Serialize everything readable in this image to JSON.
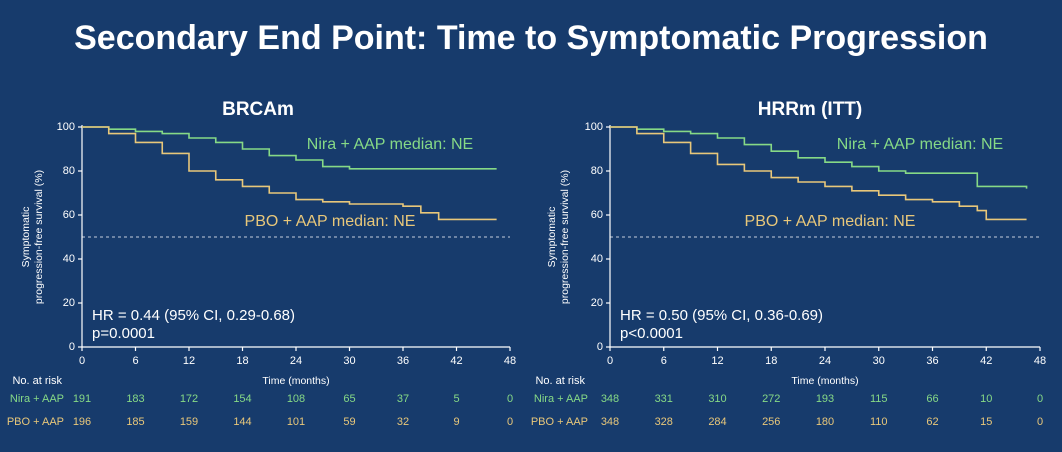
{
  "title": "Secondary End Point: Time to Symptomatic Progression",
  "chart_data": [
    {
      "type": "line",
      "step": true,
      "title": "BRCAm",
      "ylabel": [
        "Symptomatic",
        "progression-free survival (%)"
      ],
      "xlabel": "Time (months)",
      "xlim": [
        0,
        48
      ],
      "xticks": [
        0,
        6,
        12,
        18,
        24,
        30,
        36,
        42,
        48
      ],
      "ylim": [
        0,
        100
      ],
      "yticks": [
        0,
        20,
        40,
        60,
        80,
        100
      ],
      "reference_line": 50,
      "annotations": [
        "Nira + AAP median: NE",
        "PBO + AAP median: NE",
        "HR = 0.44 (95% CI, 0.29-0.68)",
        "p=0.0001"
      ],
      "risk_label": "No. at risk",
      "series": [
        {
          "name": "Nira + AAP",
          "color": "#86d986",
          "x": [
            0,
            3,
            6,
            9,
            12,
            15,
            18,
            21,
            24,
            27,
            30,
            36,
            46.5
          ],
          "values": [
            100,
            99,
            98,
            97,
            95,
            93,
            90,
            87,
            85,
            82,
            81,
            81,
            81
          ],
          "at_risk": [
            191,
            183,
            172,
            154,
            108,
            65,
            37,
            5,
            0
          ]
        },
        {
          "name": "PBO + AAP",
          "color": "#e8c77a",
          "x": [
            0,
            3,
            6,
            9,
            12,
            15,
            18,
            21,
            24,
            27,
            30,
            33,
            36,
            38,
            40,
            46.5
          ],
          "values": [
            100,
            97,
            93,
            88,
            80,
            76,
            73,
            70,
            67,
            66,
            65,
            65,
            64,
            61,
            58,
            58
          ],
          "at_risk": [
            196,
            185,
            159,
            144,
            101,
            59,
            32,
            9,
            0
          ]
        }
      ]
    },
    {
      "type": "line",
      "step": true,
      "title": "HRRm (ITT)",
      "ylabel": [
        "Symptomatic",
        "progression-free survival (%)"
      ],
      "xlabel": "Time (months)",
      "xlim": [
        0,
        48
      ],
      "xticks": [
        0,
        6,
        12,
        18,
        24,
        30,
        36,
        42,
        48
      ],
      "ylim": [
        0,
        100
      ],
      "yticks": [
        0,
        20,
        40,
        60,
        80,
        100
      ],
      "reference_line": 50,
      "annotations": [
        "Nira + AAP median: NE",
        "PBO + AAP median: NE",
        "HR = 0.50 (95% CI, 0.36-0.69)",
        "p<0.0001"
      ],
      "risk_label": "No. at risk",
      "series": [
        {
          "name": "Nira + AAP",
          "color": "#86d986",
          "x": [
            0,
            3,
            6,
            9,
            12,
            15,
            18,
            21,
            24,
            27,
            30,
            33,
            40,
            41,
            46.5
          ],
          "values": [
            100,
            99,
            98,
            97,
            95,
            92,
            89,
            86,
            84,
            82,
            80,
            79,
            79,
            73,
            72
          ],
          "at_risk": [
            348,
            331,
            310,
            272,
            193,
            115,
            66,
            10,
            0
          ]
        },
        {
          "name": "PBO + AAP",
          "color": "#e8c77a",
          "x": [
            0,
            3,
            6,
            9,
            12,
            15,
            18,
            21,
            24,
            27,
            30,
            33,
            36,
            39,
            41,
            42,
            46.5
          ],
          "values": [
            100,
            97,
            93,
            88,
            83,
            80,
            77,
            75,
            73,
            71,
            69,
            67,
            66,
            64,
            62,
            58,
            58
          ],
          "at_risk": [
            348,
            328,
            284,
            256,
            180,
            110,
            62,
            15,
            0
          ]
        }
      ]
    }
  ]
}
